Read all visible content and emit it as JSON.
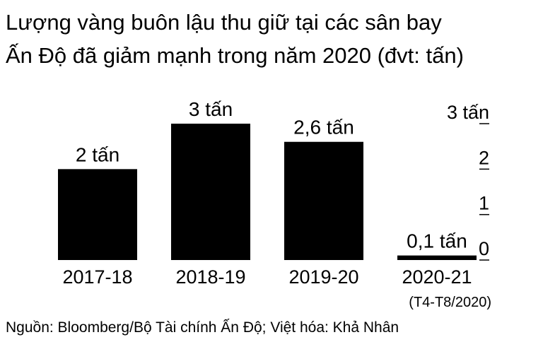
{
  "chart_data": {
    "type": "bar",
    "title": [
      "Lượng vàng buôn lậu thu giữ tại các sân bay",
      "Ấn Độ đã giảm mạnh trong năm 2020 (đvt: tấn)"
    ],
    "categories": [
      "2017-18",
      "2018-19",
      "2019-20",
      "2020-21"
    ],
    "category_note": "(T4-T8/2020)",
    "values": [
      2,
      3,
      2.6,
      0.1
    ],
    "value_labels": [
      "2 tấn",
      "3 tấn",
      "2,6 tấn",
      "0,1 tấn"
    ],
    "color": "#000000",
    "ylim": [
      0,
      3
    ],
    "yticks": [
      0,
      1,
      2,
      {
        "value": 3,
        "label": "3 tấn"
      }
    ],
    "grid": false,
    "source": "Nguồn: Bloomberg/Bộ Tài chính Ấn Độ; Việt hóa: Khả Nhân"
  }
}
